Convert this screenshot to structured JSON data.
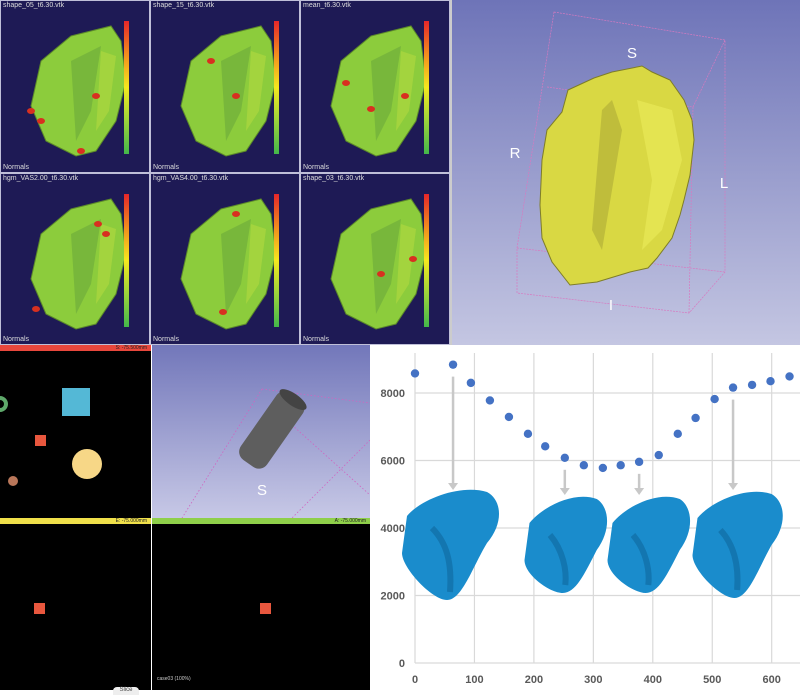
{
  "viewers": [
    {
      "title": "shape_05_t6.30.vtk",
      "footer": "Normals"
    },
    {
      "title": "shape_15_t6.30.vtk",
      "footer": "Normals"
    },
    {
      "title": "mean_t6.30.vtk",
      "footer": "Normals"
    },
    {
      "title": "hgm_VAS2.00_t6.30.vtk",
      "footer": "Normals"
    },
    {
      "title": "hgm_VAS4.00_t6.30.vtk",
      "footer": "Normals"
    },
    {
      "title": "shape_03_t6.30.vtk",
      "footer": "Normals"
    }
  ],
  "view3d": {
    "labels": {
      "superior": "S",
      "right": "R",
      "left": "L",
      "inferior": "I"
    },
    "surface_color": "#e3e24a"
  },
  "slicer": {
    "red_slice": "S: -75.500mm",
    "yellow_slice": "E: -75.000mm",
    "green_slice": "A: -75.000mm",
    "cylinder_label": "S",
    "status": "case03 (100%)",
    "tab": "Slice",
    "colors": {
      "red": "#e8473c",
      "yellow": "#f0e04a",
      "green": "#8fcf4a"
    }
  },
  "chart_data": {
    "type": "scatter",
    "x": [
      0,
      64,
      94,
      126,
      158,
      190,
      219,
      252,
      284,
      316,
      346,
      377,
      410,
      442,
      472,
      504,
      535,
      567,
      598,
      630
    ],
    "y": [
      8580,
      8840,
      8300,
      7780,
      7290,
      6790,
      6420,
      6080,
      5860,
      5780,
      5860,
      5960,
      6160,
      6790,
      7260,
      7820,
      8160,
      8240,
      8350,
      8490
    ],
    "xlim": [
      0,
      640
    ],
    "ylim": [
      0,
      9000
    ],
    "xticks": [
      "0",
      "100",
      "200",
      "300",
      "400",
      "500",
      "600"
    ],
    "yticks": [
      "0",
      "2000",
      "4000",
      "6000",
      "8000"
    ],
    "grid": true,
    "marker_color": "#4472c4",
    "annotations": [
      {
        "x": 64,
        "label": "shape"
      },
      {
        "x": 252,
        "label": "shape"
      },
      {
        "x": 377,
        "label": "shape"
      },
      {
        "x": 535,
        "label": "shape"
      }
    ],
    "shape_color": "#1a8ccc"
  }
}
